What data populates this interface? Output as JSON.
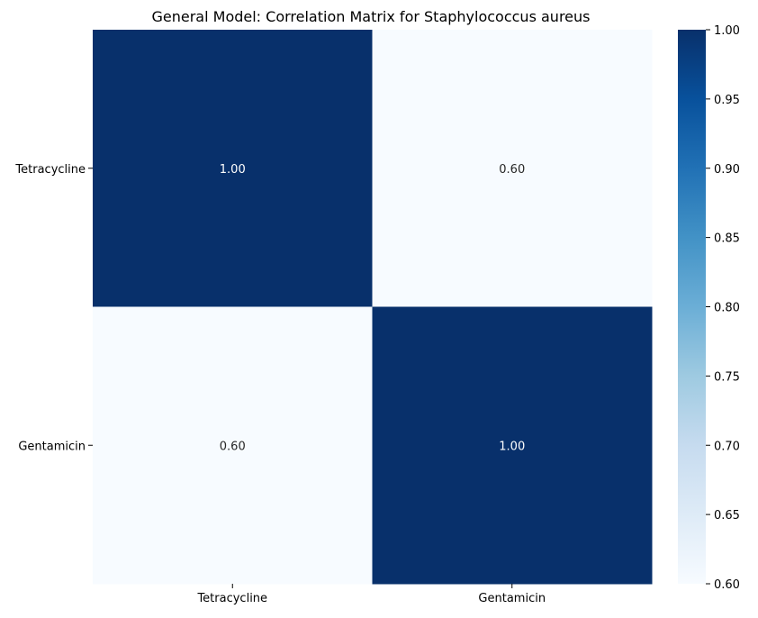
{
  "chart_data": {
    "type": "heatmap",
    "title": "General Model: Correlation Matrix for Staphylococcus aureus",
    "xlabel": "",
    "ylabel": "",
    "x_categories": [
      "Tetracycline",
      "Gentamicin"
    ],
    "y_categories": [
      "Tetracycline",
      "Gentamicin"
    ],
    "values": [
      [
        1.0,
        0.6
      ],
      [
        0.6,
        1.0
      ]
    ],
    "annotations": [
      [
        "1.00",
        "0.60"
      ],
      [
        "0.60",
        "1.00"
      ]
    ],
    "colormap": "Blues",
    "colorbar": {
      "vmin": 0.6,
      "vmax": 1.0,
      "ticks": [
        "0.60",
        "0.65",
        "0.70",
        "0.75",
        "0.80",
        "0.85",
        "0.90",
        "0.95",
        "1.00"
      ]
    },
    "colors": {
      "low": "#f7fbff",
      "high": "#08306b",
      "annotation_on_dark": "#ffffff",
      "annotation_on_light": "#262626"
    }
  }
}
